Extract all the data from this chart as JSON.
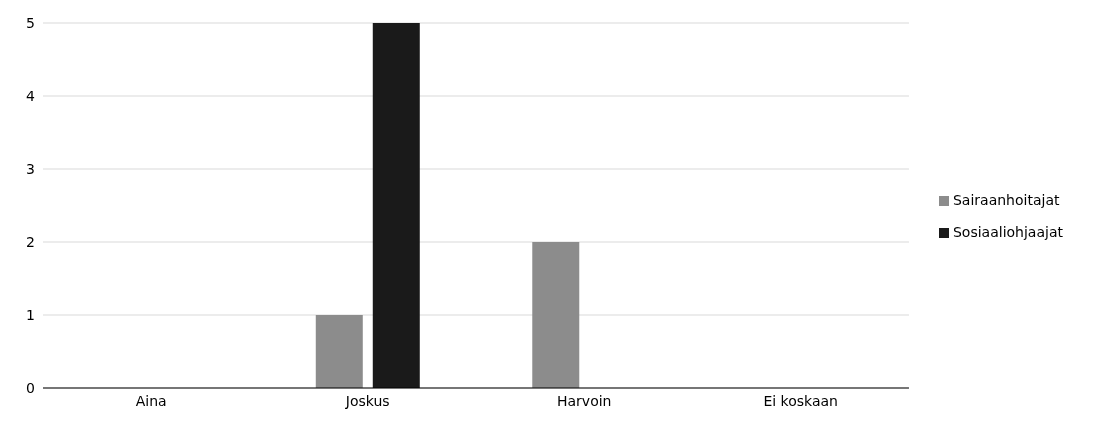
{
  "chart_data": {
    "type": "bar",
    "categories": [
      "Aina",
      "Joskus",
      "Harvoin",
      "Ei koskaan"
    ],
    "series": [
      {
        "name": "Sairaanhoitajat",
        "color": "#8c8c8c",
        "values": [
          0,
          1,
          2,
          0
        ]
      },
      {
        "name": "Sosiaaliohjaajat",
        "color": "#1a1a1a",
        "values": [
          0,
          5,
          0,
          0
        ]
      }
    ],
    "ylim": [
      0,
      5
    ],
    "yticks": [
      0,
      1,
      2,
      3,
      4,
      5
    ],
    "grid": "y",
    "legend": "right"
  }
}
